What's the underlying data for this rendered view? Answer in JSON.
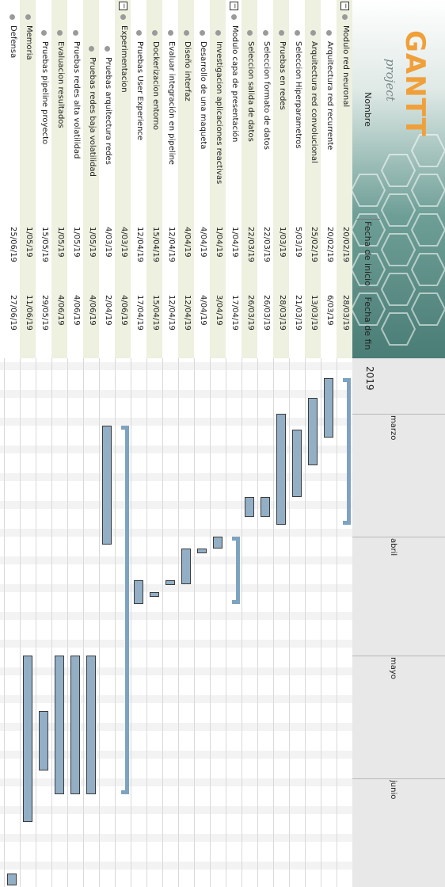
{
  "logo": {
    "brand": "GANTT",
    "sub": "project"
  },
  "columns": {
    "name": "Nombre",
    "start": "Fecha de inicio",
    "end": "Fecha de fin"
  },
  "timeline": {
    "year": "2019",
    "months": [
      "marzo",
      "abril",
      "mayo",
      "junio"
    ]
  },
  "tasks": [
    {
      "name": "Modulo red neuronal",
      "start": "20/02/19",
      "end": "28/03/19",
      "level": 0,
      "group": true,
      "shade": true
    },
    {
      "name": "Arquitectura red recurrente",
      "start": "20/02/19",
      "end": "6/03/19",
      "level": 1,
      "shade": false
    },
    {
      "name": "Arquitectura red convolucional",
      "start": "25/02/19",
      "end": "13/03/19",
      "level": 1,
      "shade": true
    },
    {
      "name": "Seleccion Hiperparametros",
      "start": "5/03/19",
      "end": "21/03/19",
      "level": 1,
      "shade": false
    },
    {
      "name": "Pruebas en redes",
      "start": "1/03/19",
      "end": "28/03/19",
      "level": 1,
      "shade": true
    },
    {
      "name": "Seleccion formato de datos",
      "start": "22/03/19",
      "end": "26/03/19",
      "level": 1,
      "shade": false
    },
    {
      "name": "Seleccion salida de datos",
      "start": "22/03/19",
      "end": "26/03/19",
      "level": 1,
      "shade": true
    },
    {
      "name": "Modulo capa de presentación",
      "start": "1/04/19",
      "end": "17/04/19",
      "level": 0,
      "group": true,
      "shade": false
    },
    {
      "name": "Investigacion aplicaciones reactivas",
      "start": "1/04/19",
      "end": "3/04/19",
      "level": 1,
      "shade": true
    },
    {
      "name": "Desarrollo de una maqueta",
      "start": "4/04/19",
      "end": "4/04/19",
      "level": 1,
      "shade": false
    },
    {
      "name": "Diseño interfaz",
      "start": "4/04/19",
      "end": "12/04/19",
      "level": 1,
      "shade": true
    },
    {
      "name": "Evaluar integración en pipeline",
      "start": "12/04/19",
      "end": "12/04/19",
      "level": 1,
      "shade": false
    },
    {
      "name": "Dockerizacion entorno",
      "start": "15/04/19",
      "end": "15/04/19",
      "level": 1,
      "shade": true
    },
    {
      "name": "Pruebas User Experience",
      "start": "12/04/19",
      "end": "17/04/19",
      "level": 1,
      "shade": false
    },
    {
      "name": "Experimentacion",
      "start": "4/03/19",
      "end": "4/06/19",
      "level": 0,
      "group": true,
      "shade": true
    },
    {
      "name": "Pruebas arquitectura redes",
      "start": "4/03/19",
      "end": "2/04/19",
      "level": 2,
      "shade": false
    },
    {
      "name": "Pruebas redes baja volatilidad",
      "start": "1/05/19",
      "end": "4/06/19",
      "level": 2,
      "shade": true
    },
    {
      "name": "Pruebas redes alta volatilidad",
      "start": "1/05/19",
      "end": "4/06/19",
      "level": 1,
      "shade": false
    },
    {
      "name": "Evaluacion resultados",
      "start": "1/05/19",
      "end": "4/06/19",
      "level": 1,
      "shade": true
    },
    {
      "name": "Pruebas pipeline proyecto",
      "start": "15/05/19",
      "end": "29/05/19",
      "level": 1,
      "shade": false
    },
    {
      "name": "Memoria",
      "start": "1/05/19",
      "end": "11/06/19",
      "level": 0,
      "shade": true
    },
    {
      "name": "Defensa",
      "start": "25/06/19",
      "end": "27/06/19",
      "level": 0,
      "shade": false
    }
  ]
}
